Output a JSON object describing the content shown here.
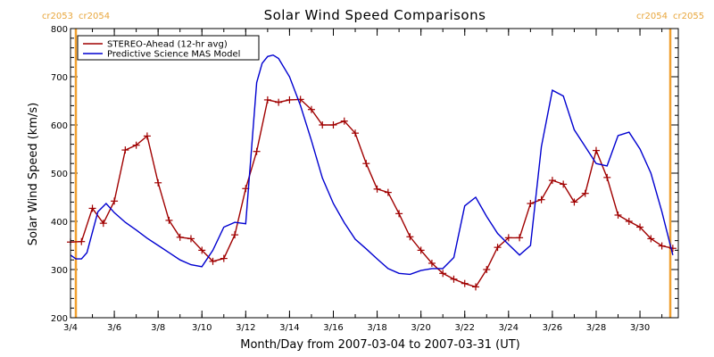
{
  "chart_data": {
    "type": "line",
    "title": "Solar Wind Speed Comparisons",
    "xlabel": "Month/Day from 2007-03-04 to 2007-03-31 (UT)",
    "ylabel": "Solar Wind Speed (km/s)",
    "xlim": [
      "2007-03-04",
      "2007-03-31T18:00"
    ],
    "ylim": [
      200,
      800
    ],
    "x_ticks": [
      "3/4",
      "3/6",
      "3/8",
      "3/10",
      "3/12",
      "3/14",
      "3/16",
      "3/18",
      "3/20",
      "3/22",
      "3/24",
      "3/26",
      "3/28",
      "3/30"
    ],
    "y_ticks": [
      200,
      300,
      400,
      500,
      600,
      700,
      800
    ],
    "legend_position": "top-left",
    "carrington_markers": [
      {
        "x": "2007-03-04",
        "left_label": "cr2053",
        "right_label": "cr2054",
        "color": "#f0a030"
      },
      {
        "x": "2007-03-31T18:00",
        "left_label": "cr2054",
        "right_label": "cr2055",
        "color": "#f0a030"
      }
    ],
    "series": [
      {
        "name": "STEREO-Ahead (12-hr avg)",
        "color": "#a00000",
        "marker": "plus",
        "x": [
          "2007-03-04T00:00",
          "2007-03-04T12:00",
          "2007-03-05T00:00",
          "2007-03-05T12:00",
          "2007-03-06T00:00",
          "2007-03-06T12:00",
          "2007-03-07T00:00",
          "2007-03-07T12:00",
          "2007-03-08T00:00",
          "2007-03-08T12:00",
          "2007-03-09T00:00",
          "2007-03-09T12:00",
          "2007-03-10T00:00",
          "2007-03-10T12:00",
          "2007-03-11T00:00",
          "2007-03-11T12:00",
          "2007-03-12T00:00",
          "2007-03-12T12:00",
          "2007-03-13T00:00",
          "2007-03-13T12:00",
          "2007-03-14T00:00",
          "2007-03-14T12:00",
          "2007-03-15T00:00",
          "2007-03-15T12:00",
          "2007-03-16T00:00",
          "2007-03-16T12:00",
          "2007-03-17T00:00",
          "2007-03-17T12:00",
          "2007-03-18T00:00",
          "2007-03-18T12:00",
          "2007-03-19T00:00",
          "2007-03-19T12:00",
          "2007-03-20T00:00",
          "2007-03-20T12:00",
          "2007-03-21T00:00",
          "2007-03-21T12:00",
          "2007-03-22T00:00",
          "2007-03-22T12:00",
          "2007-03-23T00:00",
          "2007-03-23T12:00",
          "2007-03-24T00:00",
          "2007-03-24T12:00",
          "2007-03-25T00:00",
          "2007-03-25T12:00",
          "2007-03-26T00:00",
          "2007-03-26T12:00",
          "2007-03-27T00:00",
          "2007-03-27T12:00",
          "2007-03-28T00:00",
          "2007-03-28T12:00",
          "2007-03-29T00:00",
          "2007-03-29T12:00",
          "2007-03-30T00:00",
          "2007-03-30T12:00",
          "2007-03-31T00:00",
          "2007-03-31T12:00"
        ],
        "values": [
          357,
          358,
          427,
          396,
          442,
          548,
          558,
          577,
          480,
          402,
          367,
          364,
          340,
          317,
          323,
          372,
          468,
          545,
          652,
          647,
          652,
          653,
          632,
          600,
          600,
          608,
          583,
          520,
          467,
          460,
          416,
          368,
          340,
          313,
          292,
          280,
          271,
          264,
          300,
          346,
          366,
          366,
          437,
          445,
          485,
          477,
          440,
          458,
          547,
          491,
          413,
          400,
          388,
          364,
          349,
          344
        ]
      },
      {
        "name": "Predictive Science MAS Model",
        "color": "#0000d0",
        "marker": "none",
        "x": [
          "2007-03-04T00:00",
          "2007-03-04T06:00",
          "2007-03-04T12:00",
          "2007-03-04T18:00",
          "2007-03-05T06:00",
          "2007-03-05T15:00",
          "2007-03-06T00:00",
          "2007-03-06T12:00",
          "2007-03-07T00:00",
          "2007-03-07T12:00",
          "2007-03-08T00:00",
          "2007-03-08T12:00",
          "2007-03-09T00:00",
          "2007-03-09T12:00",
          "2007-03-10T00:00",
          "2007-03-10T12:00",
          "2007-03-11T00:00",
          "2007-03-11T12:00",
          "2007-03-12T00:00",
          "2007-03-12T12:00",
          "2007-03-12T18:00",
          "2007-03-13T00:00",
          "2007-03-13T06:00",
          "2007-03-13T12:00",
          "2007-03-14T00:00",
          "2007-03-14T12:00",
          "2007-03-15T00:00",
          "2007-03-15T12:00",
          "2007-03-16T00:00",
          "2007-03-16T12:00",
          "2007-03-17T00:00",
          "2007-03-17T12:00",
          "2007-03-18T00:00",
          "2007-03-18T12:00",
          "2007-03-19T00:00",
          "2007-03-19T12:00",
          "2007-03-20T00:00",
          "2007-03-20T12:00",
          "2007-03-21T00:00",
          "2007-03-21T12:00",
          "2007-03-22T00:00",
          "2007-03-22T12:00",
          "2007-03-23T00:00",
          "2007-03-23T12:00",
          "2007-03-24T00:00",
          "2007-03-24T12:00",
          "2007-03-25T00:00",
          "2007-03-25T12:00",
          "2007-03-26T00:00",
          "2007-03-26T12:00",
          "2007-03-27T00:00",
          "2007-03-27T12:00",
          "2007-03-28T00:00",
          "2007-03-28T12:00",
          "2007-03-29T00:00",
          "2007-03-29T12:00",
          "2007-03-30T00:00",
          "2007-03-30T12:00",
          "2007-03-31T00:00",
          "2007-03-31T12:00"
        ],
        "values": [
          330,
          322,
          322,
          335,
          420,
          437,
          418,
          398,
          382,
          365,
          350,
          335,
          320,
          310,
          306,
          340,
          388,
          398,
          395,
          688,
          728,
          742,
          745,
          738,
          700,
          640,
          568,
          490,
          437,
          397,
          363,
          343,
          322,
          302,
          292,
          290,
          298,
          302,
          302,
          325,
          432,
          450,
          410,
          375,
          352,
          330,
          350,
          555,
          672,
          660,
          590,
          555,
          520,
          515,
          578,
          585,
          550,
          500,
          420,
          330
        ]
      }
    ]
  }
}
